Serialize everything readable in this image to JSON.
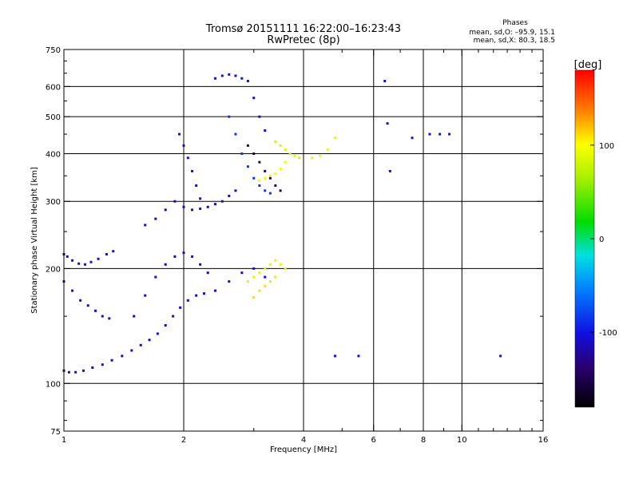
{
  "header": {
    "title_line1": "Tromsø 20151111 16:22:00–16:23:43",
    "title_line2": "RwPretec (8p)"
  },
  "stats": {
    "heading": "Phases",
    "line_o": "mean, sd,O: –95.9, 15.1",
    "line_x": "mean, sd,X:  80.3, 18.5"
  },
  "colorbar": {
    "unit_label": "[deg]",
    "tick_labels": [
      "100",
      "0",
      "-100"
    ],
    "tick_values": [
      100,
      0,
      -100
    ],
    "range": [
      -180,
      180
    ]
  },
  "chart_data": {
    "type": "scatter",
    "title": "Tromsø 20151111 16:22:00–16:23:43",
    "subtitle": "RwPretec (8p)",
    "xlabel": "Frequency [MHz]",
    "ylabel": "Stationary phase Virtual Height [km]",
    "x_scale": "log",
    "y_scale": "log",
    "xlim": [
      1,
      16
    ],
    "ylim": [
      75,
      750
    ],
    "x_ticks": [
      1,
      2,
      4,
      6,
      8,
      10,
      16
    ],
    "x_tick_labels": [
      "1",
      "2",
      "4",
      "6",
      "8",
      "10",
      "16"
    ],
    "y_ticks": [
      75,
      100,
      200,
      300,
      400,
      500,
      600,
      750
    ],
    "y_tick_labels": [
      "75",
      "100",
      "200",
      "300",
      "400",
      "500",
      "600",
      "750"
    ],
    "x_minor_ticks": [
      3,
      5,
      7,
      9,
      11,
      12,
      13,
      14,
      15
    ],
    "y_minor_ticks": [
      80,
      90,
      150,
      250,
      350,
      450,
      550,
      650,
      700
    ],
    "grid": true,
    "grid_x": [
      2,
      4,
      6,
      8,
      10
    ],
    "grid_y": [
      100,
      200,
      300,
      400,
      500,
      600
    ],
    "colormap": "rainbow",
    "color_value_label": "phase [deg]",
    "series": [
      {
        "x": [
          1.0,
          1.03,
          1.07,
          1.12,
          1.18,
          1.25,
          1.32,
          1.4,
          1.48,
          1.56,
          1.64,
          1.72,
          1.8,
          1.88,
          1.96,
          2.05,
          2.15,
          2.25
        ],
        "y": [
          108,
          107,
          107,
          108,
          110,
          112,
          115,
          118,
          122,
          126,
          130,
          135,
          142,
          150,
          158,
          165,
          170,
          172
        ],
        "phase": -110
      },
      {
        "x": [
          1.0,
          1.02,
          1.05,
          1.09,
          1.13,
          1.17,
          1.22,
          1.28,
          1.33
        ],
        "y": [
          218,
          215,
          210,
          206,
          205,
          208,
          212,
          218,
          222
        ],
        "phase": -105
      },
      {
        "x": [
          1.0,
          1.05,
          1.1,
          1.15,
          1.2,
          1.25,
          1.3
        ],
        "y": [
          185,
          175,
          165,
          160,
          155,
          150,
          148
        ],
        "phase": -108
      },
      {
        "x": [
          1.5,
          1.6,
          1.7,
          1.8,
          1.9,
          2.0,
          2.1,
          2.2,
          2.3
        ],
        "y": [
          150,
          170,
          190,
          205,
          215,
          220,
          215,
          205,
          195
        ],
        "phase": -112
      },
      {
        "x": [
          1.6,
          1.7,
          1.8,
          1.9,
          2.0,
          2.1,
          2.2,
          2.3,
          2.4,
          2.5,
          2.6,
          2.7
        ],
        "y": [
          260,
          270,
          285,
          300,
          290,
          285,
          287,
          290,
          295,
          300,
          310,
          320
        ],
        "phase": -112
      },
      {
        "x": [
          1.95,
          2.0,
          2.05,
          2.1,
          2.15,
          2.2
        ],
        "y": [
          450,
          420,
          390,
          360,
          330,
          305
        ],
        "phase": -105
      },
      {
        "x": [
          2.4,
          2.5,
          2.6,
          2.7,
          2.8,
          2.9,
          3.0,
          3.1,
          3.2
        ],
        "y": [
          630,
          640,
          645,
          640,
          630,
          620,
          560,
          500,
          460
        ],
        "phase": -100
      },
      {
        "x": [
          2.6,
          2.7,
          2.8,
          2.9,
          3.0,
          3.1,
          3.2,
          3.3
        ],
        "y": [
          500,
          450,
          400,
          370,
          345,
          330,
          320,
          315
        ],
        "phase": -85
      },
      {
        "x": [
          2.9,
          3.0,
          3.1,
          3.2,
          3.3,
          3.4,
          3.5
        ],
        "y": [
          420,
          400,
          380,
          360,
          345,
          330,
          320
        ],
        "phase": -145
      },
      {
        "x": [
          3.1,
          3.2,
          3.3,
          3.4,
          3.5,
          3.6,
          3.7
        ],
        "y": [
          340,
          345,
          350,
          355,
          365,
          380,
          400
        ],
        "phase": 95
      },
      {
        "x": [
          3.4,
          3.5,
          3.6,
          3.7,
          3.8,
          3.9
        ],
        "y": [
          430,
          420,
          410,
          400,
          395,
          390
        ],
        "phase": 80
      },
      {
        "x": [
          2.4,
          2.6,
          2.8,
          3.0,
          3.2
        ],
        "y": [
          175,
          185,
          195,
          200,
          190
        ],
        "phase": -100
      },
      {
        "x": [
          2.9,
          3.0,
          3.1,
          3.2,
          3.3,
          3.4,
          3.5,
          3.6
        ],
        "y": [
          185,
          190,
          195,
          200,
          205,
          210,
          205,
          200
        ],
        "phase": 85
      },
      {
        "x": [
          3.0,
          3.1,
          3.2,
          3.3,
          3.4
        ],
        "y": [
          168,
          175,
          180,
          185,
          190
        ],
        "phase": 110
      },
      {
        "x": [
          4.2,
          4.4,
          4.6,
          4.8
        ],
        "y": [
          390,
          395,
          410,
          440
        ],
        "phase": 90
      },
      {
        "x": [
          6.4,
          6.5,
          6.6,
          7.5,
          8.3,
          8.8,
          9.3,
          12.5,
          5.5,
          4.8
        ],
        "y": [
          620,
          480,
          360,
          440,
          450,
          450,
          450,
          118,
          118,
          118
        ],
        "phase": -100
      }
    ]
  }
}
